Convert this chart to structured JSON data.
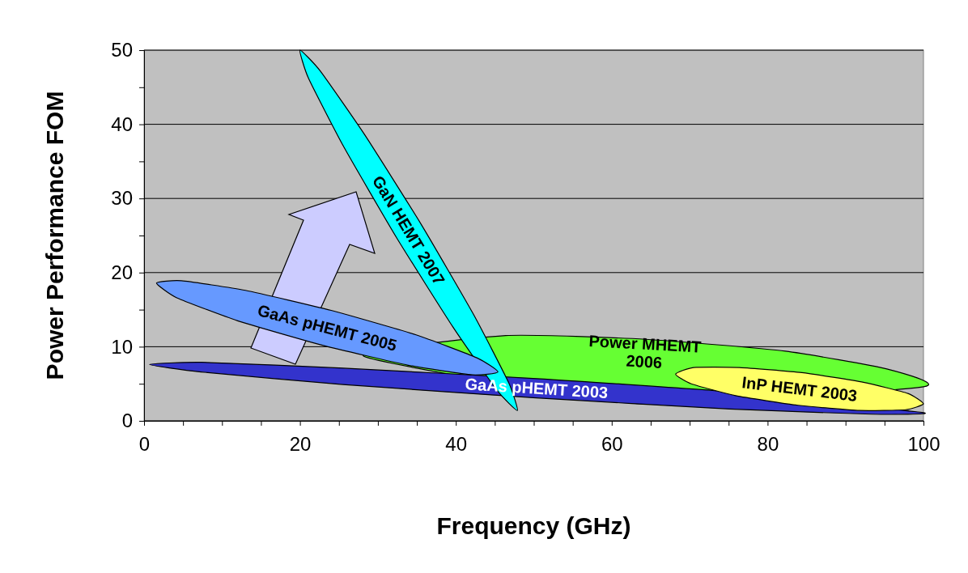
{
  "chart_data": {
    "type": "area",
    "xlabel": "Frequency (GHz)",
    "ylabel": "Power Performance FOM",
    "xlim": [
      0,
      100
    ],
    "ylim": [
      0,
      50
    ],
    "xticks": [
      0,
      {
        "value": 5,
        "label": null
      },
      {
        "value": 10,
        "label": null
      },
      {
        "value": 15,
        "label": null
      },
      20,
      {
        "value": 25,
        "label": null
      },
      {
        "value": 30,
        "label": null
      },
      {
        "value": 35,
        "label": null
      },
      40,
      {
        "value": 45,
        "label": null
      },
      {
        "value": 50,
        "label": null
      },
      {
        "value": 55,
        "label": null
      },
      60,
      {
        "value": 65,
        "label": null
      },
      {
        "value": 70,
        "label": null
      },
      {
        "value": 75,
        "label": null
      },
      80,
      {
        "value": 85,
        "label": null
      },
      {
        "value": 90,
        "label": null
      },
      {
        "value": 95,
        "label": null
      },
      100
    ],
    "yticks": [
      0,
      {
        "value": 5,
        "label": null
      },
      10,
      {
        "value": 15,
        "label": null
      },
      20,
      {
        "value": 25,
        "label": null
      },
      30,
      {
        "value": 35,
        "label": null
      },
      40,
      {
        "value": 45,
        "label": null
      },
      50
    ],
    "grid": "y",
    "series": [
      {
        "name": "Power MHEMT 2006",
        "color": "#66ff33",
        "x": [
          100,
          95.3,
          82.3,
          64.4,
          46.4,
          28.2,
          63.9
        ],
        "values": [
          4.6,
          7.0,
          9.4,
          11.0,
          11.5,
          8.7,
          2.3
        ]
      },
      {
        "name": "GaAs pHEMT 2003",
        "color": "#3333cc",
        "x": [
          100,
          75.3,
          50.4,
          25.6,
          7.4,
          0.7,
          7.3,
          25.5,
          50.3,
          75.1,
          93.3
        ],
        "values": [
          1.1,
          3.9,
          5.7,
          7.1,
          7.9,
          7.6,
          6.6,
          4.9,
          3.1,
          1.6,
          0.9
        ]
      },
      {
        "name": "GaN HEMT 2007",
        "color": "#00ffff",
        "x": [
          47.9,
          46.8,
          42.3,
          35.5,
          28.3,
          22.6,
          20.0,
          21.1,
          25.6,
          32.4,
          39.6,
          45.3
        ],
        "values": [
          1.4,
          5.1,
          14.3,
          26.6,
          38.6,
          47.2,
          50,
          46.2,
          37.0,
          24.7,
          12.7,
          4.1
        ]
      },
      {
        "name": "GaAs pHEMT 2005",
        "color": "#6699ff",
        "x": [
          45.4,
          42.7,
          34.9,
          24.0,
          13.0,
          4.8,
          1.6,
          4.2,
          12.0,
          22.9,
          33.9,
          42.1
        ],
        "values": [
          6.6,
          8.5,
          11.6,
          14.9,
          17.6,
          18.9,
          18.6,
          16.6,
          13.5,
          10.2,
          7.5,
          6.2
        ]
      },
      {
        "name": "InP HEMT 2003",
        "color": "#ffff66",
        "x": [
          100,
          98.0,
          92.3,
          84.4,
          76.4,
          70.5,
          68.2,
          70.2,
          75.9,
          83.9,
          91.8,
          97.7
        ],
        "values": [
          2.3,
          3.7,
          5.2,
          6.5,
          7.2,
          7.2,
          6.3,
          5.0,
          3.4,
          2.1,
          1.4,
          1.5
        ]
      }
    ]
  }
}
